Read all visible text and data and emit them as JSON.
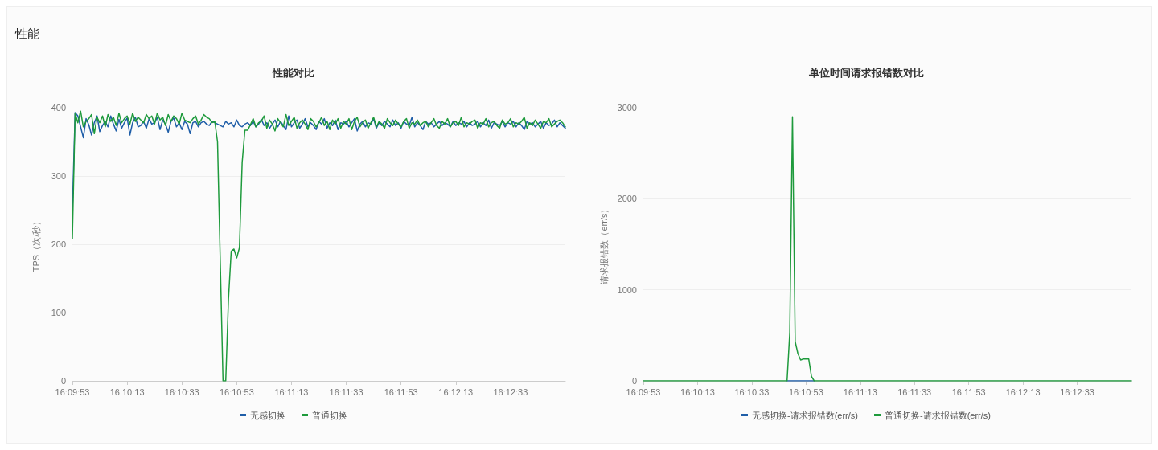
{
  "chart_data": [
    {
      "type": "line",
      "title": "性能对比",
      "annotations": [
        "性能"
      ],
      "ylabel": "TPS（次/秒）",
      "categories": [
        "16:09:53",
        null,
        null,
        null,
        null,
        null,
        null,
        null,
        null,
        null,
        null,
        null,
        null,
        null,
        null,
        null,
        null,
        null,
        null,
        null,
        "16:10:13",
        null,
        null,
        null,
        null,
        null,
        null,
        null,
        null,
        null,
        null,
        null,
        null,
        null,
        null,
        null,
        null,
        null,
        null,
        null,
        "16:10:33",
        null,
        null,
        null,
        null,
        null,
        null,
        null,
        null,
        null,
        null,
        null,
        null,
        null,
        null,
        null,
        null,
        null,
        null,
        null,
        "16:10:53",
        null,
        null,
        null,
        null,
        null,
        null,
        null,
        null,
        null,
        null,
        null,
        null,
        null,
        null,
        null,
        null,
        null,
        null,
        null,
        "16:11:13",
        null,
        null,
        null,
        null,
        null,
        null,
        null,
        null,
        null,
        null,
        null,
        null,
        null,
        null,
        null,
        null,
        null,
        null,
        null,
        "16:11:33",
        null,
        null,
        null,
        null,
        null,
        null,
        null,
        null,
        null,
        null,
        null,
        null,
        null,
        null,
        null,
        null,
        null,
        null,
        null,
        "16:11:53",
        null,
        null,
        null,
        null,
        null,
        null,
        null,
        null,
        null,
        null,
        null,
        null,
        null,
        null,
        null,
        null,
        null,
        null,
        null,
        "16:12:13",
        null,
        null,
        null,
        null,
        null,
        null,
        null,
        null,
        null,
        null,
        null,
        null,
        null,
        null,
        null,
        null,
        null,
        null,
        null,
        "16:12:33",
        null,
        null,
        null,
        null,
        null,
        null,
        null,
        null,
        null,
        null,
        null,
        null,
        null,
        null,
        null,
        null,
        null,
        null,
        null,
        null
      ],
      "series": [
        {
          "name": "无感切换",
          "color": "#1f5ea8",
          "values": [
            250,
            393,
            388,
            372,
            356,
            384,
            375,
            360,
            378,
            388,
            365,
            374,
            380,
            372,
            388,
            376,
            366,
            383,
            370,
            378,
            385,
            360,
            378,
            386,
            372,
            374,
            380,
            370,
            384,
            376,
            378,
            386,
            368,
            382,
            376,
            364,
            380,
            385,
            372,
            378,
            368,
            380,
            376,
            362,
            378,
            380,
            372,
            378,
            380,
            376,
            374,
            380,
            378,
            376,
            374,
            372,
            380,
            376,
            378,
            372,
            382,
            374,
            372,
            376,
            378,
            374,
            380,
            372,
            376,
            383,
            374,
            378,
            370,
            376,
            382,
            372,
            380,
            374,
            368,
            388,
            372,
            378,
            382,
            370,
            376,
            384,
            372,
            378,
            374,
            368,
            380,
            376,
            384,
            370,
            378,
            374,
            382,
            368,
            378,
            376,
            380,
            372,
            378,
            384,
            366,
            376,
            380,
            372,
            378,
            376,
            384,
            370,
            378,
            374,
            380,
            376,
            372,
            382,
            374,
            378,
            370,
            380,
            376,
            374,
            386,
            372,
            378,
            374,
            368,
            380,
            376,
            378,
            372,
            376,
            380,
            374,
            378,
            376,
            372,
            380,
            374,
            378,
            376,
            380,
            372,
            378,
            374,
            376,
            380,
            372,
            378,
            374,
            382,
            370,
            378,
            376,
            374,
            380,
            372,
            378,
            376,
            380,
            372,
            378,
            374,
            368,
            380,
            376,
            378,
            372,
            376,
            380,
            370,
            378,
            374,
            376,
            382,
            372,
            378,
            374,
            370
          ]
        },
        {
          "name": "普通切换",
          "color": "#1e9a3c",
          "values": [
            208,
            392,
            378,
            395,
            372,
            380,
            384,
            390,
            362,
            386,
            378,
            388,
            372,
            390,
            380,
            386,
            374,
            392,
            378,
            384,
            388,
            376,
            392,
            380,
            386,
            382,
            378,
            390,
            384,
            388,
            376,
            392,
            382,
            386,
            374,
            390,
            380,
            388,
            384,
            376,
            392,
            382,
            380,
            378,
            384,
            388,
            376,
            382,
            390,
            386,
            384,
            378,
            380,
            350,
            175,
            0,
            0,
            120,
            190,
            193,
            180,
            195,
            320,
            367,
            367,
            375,
            384,
            372,
            378,
            380,
            388,
            370,
            382,
            376,
            366,
            384,
            378,
            372,
            390,
            374,
            380,
            386,
            370,
            378,
            382,
            376,
            368,
            384,
            380,
            372,
            378,
            386,
            374,
            380,
            368,
            382,
            376,
            384,
            370,
            380,
            376,
            384,
            368,
            380,
            386,
            372,
            378,
            382,
            370,
            378,
            386,
            372,
            380,
            376,
            370,
            384,
            378,
            374,
            382,
            376,
            372,
            380,
            384,
            370,
            378,
            376,
            382,
            374,
            378,
            380,
            372,
            378,
            384,
            374,
            370,
            380,
            376,
            384,
            372,
            378,
            380,
            374,
            386,
            372,
            378,
            376,
            380,
            382,
            370,
            378,
            376,
            384,
            372,
            378,
            380,
            374,
            370,
            382,
            376,
            378,
            384,
            372,
            378,
            376,
            380,
            386,
            370,
            378,
            374,
            382,
            376,
            370,
            380,
            378,
            384,
            372,
            376,
            380,
            382,
            378,
            372
          ]
        }
      ],
      "ylim": [
        0,
        400
      ],
      "yticks": [
        0,
        100,
        200,
        300,
        400
      ],
      "grid": "y",
      "legend": "bottom",
      "marker": "none",
      "line_style": "solid"
    },
    {
      "type": "line",
      "title": "单位时间请求报错数对比",
      "ylabel": "请求报错数（err/s）",
      "categories": [
        "16:09:53",
        null,
        null,
        null,
        null,
        null,
        null,
        null,
        null,
        null,
        null,
        null,
        null,
        null,
        null,
        null,
        null,
        null,
        null,
        null,
        "16:10:13",
        null,
        null,
        null,
        null,
        null,
        null,
        null,
        null,
        null,
        null,
        null,
        null,
        null,
        null,
        null,
        null,
        null,
        null,
        null,
        "16:10:33",
        null,
        null,
        null,
        null,
        null,
        null,
        null,
        null,
        null,
        null,
        null,
        null,
        null,
        null,
        null,
        null,
        null,
        null,
        null,
        "16:10:53",
        null,
        null,
        null,
        null,
        null,
        null,
        null,
        null,
        null,
        null,
        null,
        null,
        null,
        null,
        null,
        null,
        null,
        null,
        null,
        "16:11:13",
        null,
        null,
        null,
        null,
        null,
        null,
        null,
        null,
        null,
        null,
        null,
        null,
        null,
        null,
        null,
        null,
        null,
        null,
        null,
        "16:11:33",
        null,
        null,
        null,
        null,
        null,
        null,
        null,
        null,
        null,
        null,
        null,
        null,
        null,
        null,
        null,
        null,
        null,
        null,
        null,
        "16:11:53",
        null,
        null,
        null,
        null,
        null,
        null,
        null,
        null,
        null,
        null,
        null,
        null,
        null,
        null,
        null,
        null,
        null,
        null,
        null,
        "16:12:13",
        null,
        null,
        null,
        null,
        null,
        null,
        null,
        null,
        null,
        null,
        null,
        null,
        null,
        null,
        null,
        null,
        null,
        null,
        null,
        "16:12:33",
        null,
        null,
        null,
        null,
        null,
        null,
        null,
        null,
        null,
        null,
        null,
        null,
        null,
        null,
        null,
        null,
        null,
        null,
        null,
        null
      ],
      "series": [
        {
          "name": "无感切换-请求报错数(err/s)",
          "color": "#1f5ea8",
          "values": [
            null,
            null,
            null,
            null,
            null,
            null,
            null,
            null,
            null,
            null,
            null,
            null,
            null,
            null,
            null,
            null,
            null,
            null,
            null,
            null,
            null,
            null,
            null,
            null,
            null,
            null,
            null,
            null,
            null,
            null,
            null,
            null,
            null,
            null,
            null,
            null,
            null,
            null,
            null,
            null,
            null,
            null,
            null,
            null,
            null,
            null,
            null,
            null,
            null,
            null,
            null,
            null,
            null,
            0,
            0,
            0,
            0,
            0,
            0,
            0,
            0,
            0,
            0,
            0,
            null,
            null,
            null,
            null,
            null,
            null,
            null,
            null,
            null,
            null,
            null,
            null,
            null,
            null,
            null,
            null,
            null,
            null,
            null,
            null,
            null,
            null,
            null,
            null,
            null,
            null,
            null,
            null,
            null,
            null,
            null,
            null,
            null,
            null,
            null,
            null,
            null,
            null,
            null,
            null,
            null,
            null,
            null,
            null,
            null,
            null,
            null,
            null,
            null,
            null,
            null,
            null,
            null,
            null,
            null,
            null,
            null,
            null,
            null,
            null,
            null,
            null,
            null,
            null,
            null,
            null,
            null,
            null,
            null,
            null,
            null,
            null,
            null,
            null,
            null,
            null,
            null,
            null,
            null,
            null,
            null,
            null,
            null,
            null,
            null,
            null,
            null,
            null,
            null,
            null,
            null,
            null,
            null,
            null,
            null,
            null,
            null,
            null,
            null,
            null,
            null,
            null,
            null,
            null,
            null,
            null,
            null,
            null,
            null,
            null,
            null,
            null,
            null,
            null,
            null,
            null,
            null
          ]
        },
        {
          "name": "普通切换-请求报错数(err/s)",
          "color": "#1e9a3c",
          "values": [
            0,
            0,
            0,
            0,
            0,
            0,
            0,
            0,
            0,
            0,
            0,
            0,
            0,
            0,
            0,
            0,
            0,
            0,
            0,
            0,
            0,
            0,
            0,
            0,
            0,
            0,
            0,
            0,
            0,
            0,
            0,
            0,
            0,
            0,
            0,
            0,
            0,
            0,
            0,
            0,
            0,
            0,
            0,
            0,
            0,
            0,
            0,
            0,
            0,
            0,
            0,
            0,
            0,
            0,
            530,
            2900,
            430,
            300,
            230,
            240,
            240,
            240,
            50,
            0,
            0,
            0,
            0,
            0,
            0,
            0,
            0,
            0,
            0,
            0,
            0,
            0,
            0,
            0,
            0,
            0,
            0,
            0,
            0,
            0,
            0,
            0,
            0,
            0,
            0,
            0,
            0,
            0,
            0,
            0,
            0,
            0,
            0,
            0,
            0,
            0,
            0,
            0,
            0,
            0,
            0,
            0,
            0,
            0,
            0,
            0,
            0,
            0,
            0,
            0,
            0,
            0,
            0,
            0,
            0,
            0,
            0,
            0,
            0,
            0,
            0,
            0,
            0,
            0,
            0,
            0,
            0,
            0,
            0,
            0,
            0,
            0,
            0,
            0,
            0,
            0,
            0,
            0,
            0,
            0,
            0,
            0,
            0,
            0,
            0,
            0,
            0,
            0,
            0,
            0,
            0,
            0,
            0,
            0,
            0,
            0,
            0,
            0,
            0,
            0,
            0,
            0,
            0,
            0,
            0,
            0,
            0,
            0,
            0,
            0,
            0,
            0,
            0,
            0,
            0,
            0,
            0
          ]
        }
      ],
      "ylim": [
        0,
        3000
      ],
      "yticks": [
        0,
        1000,
        2000,
        3000
      ],
      "grid": "y",
      "legend": "bottom",
      "marker": "none",
      "line_style": "solid"
    }
  ]
}
